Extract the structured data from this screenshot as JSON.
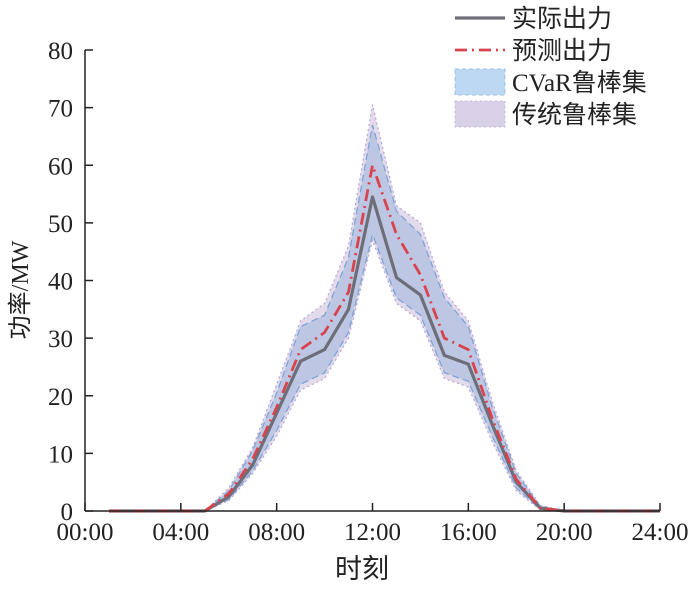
{
  "chart_data": {
    "type": "area",
    "xlabel": "时刻",
    "ylabel": "功率/MW",
    "xlim": [
      0,
      24
    ],
    "ylim": [
      0,
      80
    ],
    "x_ticks": [
      0,
      4,
      8,
      12,
      16,
      20,
      24
    ],
    "x_tick_labels": [
      "00:00",
      "04:00",
      "08:00",
      "12:00",
      "16:00",
      "20:00",
      "24:00"
    ],
    "y_ticks": [
      0,
      10,
      20,
      30,
      40,
      50,
      60,
      70,
      80
    ],
    "y_tick_labels": [
      "0",
      "10",
      "20",
      "30",
      "40",
      "50",
      "60",
      "70",
      "80"
    ],
    "grid": false,
    "legend_position": "top-right",
    "x": [
      1,
      2,
      3,
      4,
      5,
      6,
      7,
      8,
      9,
      10,
      11,
      12,
      13,
      14,
      15,
      16,
      17,
      18,
      19,
      20,
      21,
      22,
      23,
      24
    ],
    "series": [
      {
        "name": "实际出力",
        "kind": "line",
        "color": "#6e6e78",
        "values": [
          0,
          0,
          0,
          0,
          0,
          2.5,
          8,
          17,
          26,
          28,
          35,
          54.5,
          40.5,
          37.5,
          27,
          25.5,
          15,
          5,
          0.5,
          0,
          0,
          0,
          0,
          0
        ]
      },
      {
        "name": "预测出力",
        "kind": "line",
        "color": "#d9444c",
        "values": [
          0,
          0,
          0,
          0,
          0,
          3,
          9,
          18,
          28,
          31,
          38,
          60,
          48,
          41,
          30,
          28,
          16,
          5.5,
          0.5,
          0,
          0,
          0,
          0,
          0
        ]
      },
      {
        "name": "CVaR鲁棒集",
        "kind": "band",
        "color": "#bcd8f2",
        "upper": [
          0,
          0,
          0,
          0,
          0,
          3.5,
          10.5,
          20.5,
          32,
          34,
          44,
          67,
          52,
          48,
          37,
          32,
          18,
          6.5,
          0.8,
          0,
          0,
          0,
          0,
          0
        ],
        "lower": [
          0,
          0,
          0,
          0,
          0,
          2,
          7,
          14,
          22,
          24,
          31,
          48,
          37,
          34,
          24,
          22.5,
          13,
          4,
          0.3,
          0,
          0,
          0,
          0,
          0
        ]
      },
      {
        "name": "传统鲁棒集",
        "kind": "band",
        "color": "#d9cfe6",
        "upper": [
          0,
          0,
          0,
          0,
          0,
          4,
          11,
          22,
          33,
          36,
          46,
          70.5,
          53,
          50,
          38,
          33,
          19,
          7,
          1,
          0,
          0,
          0,
          0,
          0
        ],
        "lower": [
          0,
          0,
          0,
          0,
          0,
          1.8,
          6.5,
          13,
          21,
          23,
          30,
          47,
          36,
          33,
          23,
          21.5,
          12,
          3.5,
          0.2,
          0,
          0,
          0,
          0,
          0
        ]
      }
    ]
  }
}
